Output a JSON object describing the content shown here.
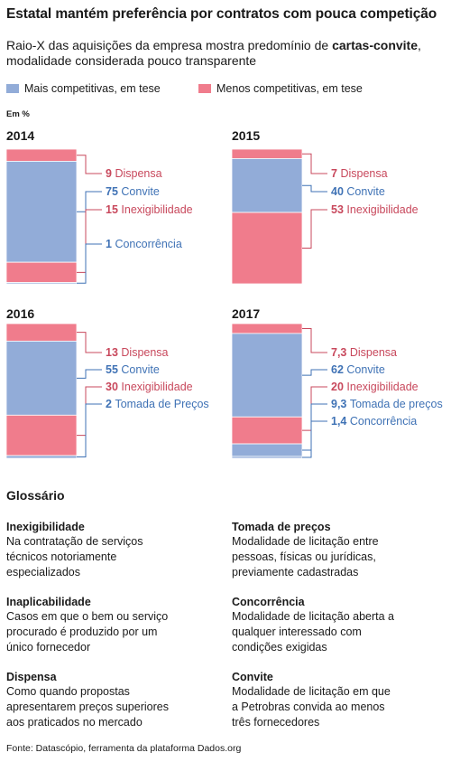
{
  "title": "Estatal mantém preferência por contratos com pouca competição",
  "subtitle": {
    "before": "Raio-X das aquisições da empresa mostra predomínio de ",
    "bold": "cartas-convite",
    "after": ", modalidade considerada pouco transparente"
  },
  "legend": {
    "more_competitive": "Mais competitivas, em tese",
    "less_competitive": "Menos competitivas, em tese"
  },
  "colors": {
    "more_competitive": "#92acd8",
    "less_competitive": "#f07c8c",
    "label_more": "#3f72b5",
    "label_less": "#c8485c"
  },
  "unit_label": "Em %",
  "chart_data": [
    {
      "type": "bar",
      "stacked": true,
      "title": "2014",
      "segments": [
        {
          "name": "Dispensa",
          "value": 9,
          "label": "9",
          "group": "less"
        },
        {
          "name": "Convite",
          "value": 75,
          "label": "75",
          "group": "more"
        },
        {
          "name": "Inexigibilidade",
          "value": 15,
          "label": "15",
          "group": "less"
        },
        {
          "name": "Concorrência",
          "value": 1,
          "label": "1",
          "group": "more"
        }
      ]
    },
    {
      "type": "bar",
      "stacked": true,
      "title": "2015",
      "segments": [
        {
          "name": "Dispensa",
          "value": 7,
          "label": "7",
          "group": "less"
        },
        {
          "name": "Convite",
          "value": 40,
          "label": "40",
          "group": "more"
        },
        {
          "name": "Inexigibilidade",
          "value": 53,
          "label": "53",
          "group": "less"
        }
      ]
    },
    {
      "type": "bar",
      "stacked": true,
      "title": "2016",
      "segments": [
        {
          "name": "Dispensa",
          "value": 13,
          "label": "13",
          "group": "less"
        },
        {
          "name": "Convite",
          "value": 55,
          "label": "55",
          "group": "more"
        },
        {
          "name": "Inexigibilidade",
          "value": 30,
          "label": "30",
          "group": "less"
        },
        {
          "name": "Tomada de Preços",
          "value": 2,
          "label": "2",
          "group": "more"
        }
      ]
    },
    {
      "type": "bar",
      "stacked": true,
      "title": "2017",
      "segments": [
        {
          "name": "Dispensa",
          "value": 7.3,
          "label": "7,3",
          "group": "less"
        },
        {
          "name": "Convite",
          "value": 62,
          "label": "62",
          "group": "more"
        },
        {
          "name": "Inexigibilidade",
          "value": 20,
          "label": "20",
          "group": "less"
        },
        {
          "name": "Tomada de preços",
          "value": 9.3,
          "label": "9,3",
          "group": "more"
        },
        {
          "name": "Concorrência",
          "value": 1.4,
          "label": "1,4",
          "group": "more"
        }
      ]
    }
  ],
  "glossary": {
    "title": "Glossário",
    "items": [
      {
        "term": "Inexigibilidade",
        "lines": [
          "Na contratação de serviços",
          "técnicos notoriamente",
          "especializados"
        ]
      },
      {
        "term": "Tomada de preços",
        "lines": [
          "Modalidade de licitação entre",
          "pessoas, físicas ou jurídicas,",
          "previamente cadastradas"
        ]
      },
      {
        "term": "Inaplicabilidade",
        "lines": [
          "Casos em que o bem ou serviço",
          "procurado é produzido por um",
          "único fornecedor"
        ]
      },
      {
        "term": "Concorrência",
        "lines": [
          "Modalidade de licitação aberta a",
          "qualquer interessado com",
          "condições exigidas"
        ]
      },
      {
        "term": "Dispensa",
        "lines": [
          "Como quando propostas",
          "apresentarem preços superiores",
          "aos praticados no mercado"
        ]
      },
      {
        "term": "Convite",
        "lines": [
          "Modalidade de licitação em que",
          "a Petrobras convida ao menos",
          "três fornecedores"
        ]
      }
    ]
  },
  "source": "Fonte: Datascópio, ferramenta da plataforma Dados.org"
}
